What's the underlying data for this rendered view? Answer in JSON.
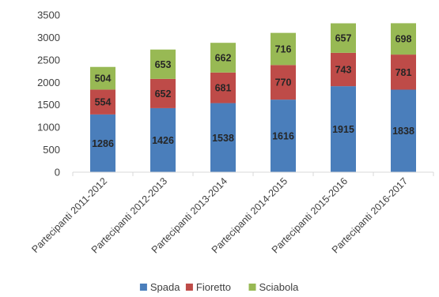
{
  "chart_data": {
    "type": "bar",
    "stacked": true,
    "categories": [
      "Partecipanti 2011-2012",
      "Partecipanti 2012-2013",
      "Partecipanti 2013-2014",
      "Partecipanti 2014-2015",
      "Partecipanti 2015-2016",
      "Partecipanti 2016-2017"
    ],
    "series": [
      {
        "name": "Spada",
        "color": "#4a7ebb",
        "values": [
          1286,
          1426,
          1538,
          1616,
          1915,
          1838
        ]
      },
      {
        "name": "Fioretto",
        "color": "#be4b48",
        "values": [
          554,
          652,
          681,
          770,
          743,
          781
        ]
      },
      {
        "name": "Sciabola",
        "color": "#98b954",
        "values": [
          504,
          653,
          662,
          716,
          657,
          698
        ]
      }
    ],
    "yticks": [
      "0",
      "500",
      "1000",
      "1500",
      "2000",
      "2500",
      "3000",
      "3500"
    ],
    "ylim": [
      0,
      3500
    ],
    "grid": false,
    "legend_position": "bottom"
  }
}
